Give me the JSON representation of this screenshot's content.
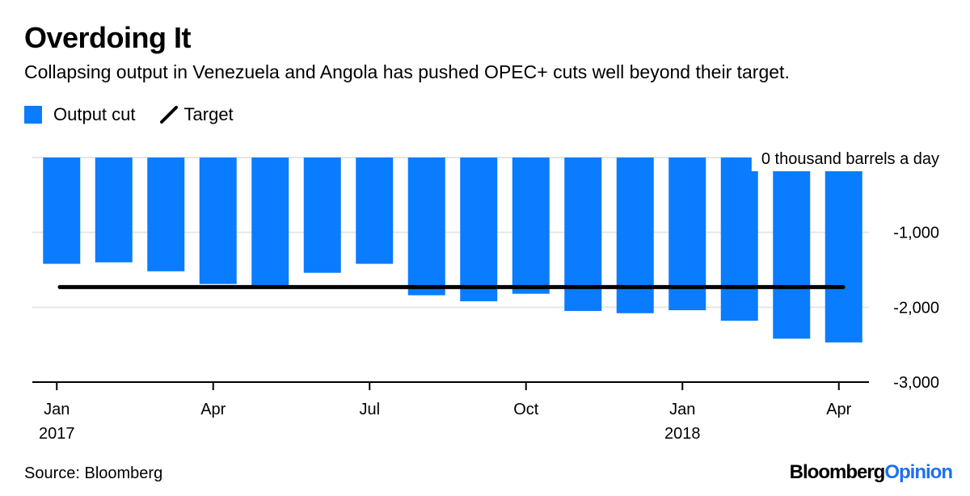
{
  "header": {
    "title": "Overdoing It",
    "subtitle": "Collapsing output in Venezuela and Angola has pushed OPEC+ cuts well beyond their target."
  },
  "legend": {
    "bar_label": "Output cut",
    "line_label": "Target"
  },
  "footer": {
    "source": "Source: Bloomberg",
    "brand_part1": "Bloomberg",
    "brand_part2": "Opinion"
  },
  "colors": {
    "bar": "#0a7cff",
    "target_line": "#000000",
    "grid": "#e6e6e6",
    "axis": "#000000",
    "brand_accent": "#1f6ff2"
  },
  "chart_data": {
    "type": "bar",
    "title": "Overdoing It",
    "subtitle": "Collapsing output in Venezuela and Angola has pushed OPEC+ cuts well beyond their target.",
    "unit_label": "0 thousand barrels a day",
    "categories": [
      "Jan 2017",
      "Feb 2017",
      "Mar 2017",
      "Apr 2017",
      "May 2017",
      "Jun 2017",
      "Jul 2017",
      "Aug 2017",
      "Sep 2017",
      "Oct 2017",
      "Nov 2017",
      "Dec 2017",
      "Jan 2018",
      "Feb 2018",
      "Mar 2018",
      "Apr 2018"
    ],
    "series": [
      {
        "name": "Output cut",
        "type": "bar",
        "values": [
          -1420,
          -1400,
          -1520,
          -1690,
          -1730,
          -1540,
          -1420,
          -1840,
          -1920,
          -1820,
          -2050,
          -2080,
          -2040,
          -2180,
          -2420,
          -2470
        ]
      },
      {
        "name": "Target",
        "type": "line",
        "values": [
          -1730,
          -1730,
          -1730,
          -1730,
          -1730,
          -1730,
          -1730,
          -1730,
          -1730,
          -1730,
          -1730,
          -1730,
          -1730,
          -1730,
          -1730,
          -1730
        ]
      }
    ],
    "ylim": [
      -3000,
      0
    ],
    "yticks": [
      0,
      -1000,
      -2000,
      -3000
    ],
    "ytick_labels": [
      "",
      "-1,000",
      "-2,000",
      "-3,000"
    ],
    "xticks": [
      {
        "index": 0,
        "month": "Jan",
        "year": "2017"
      },
      {
        "index": 3,
        "month": "Apr",
        "year": ""
      },
      {
        "index": 6,
        "month": "Jul",
        "year": ""
      },
      {
        "index": 9,
        "month": "Oct",
        "year": ""
      },
      {
        "index": 12,
        "month": "Jan",
        "year": "2018"
      },
      {
        "index": 15,
        "month": "Apr",
        "year": ""
      }
    ],
    "grid": true,
    "legend_position": "top-left"
  }
}
